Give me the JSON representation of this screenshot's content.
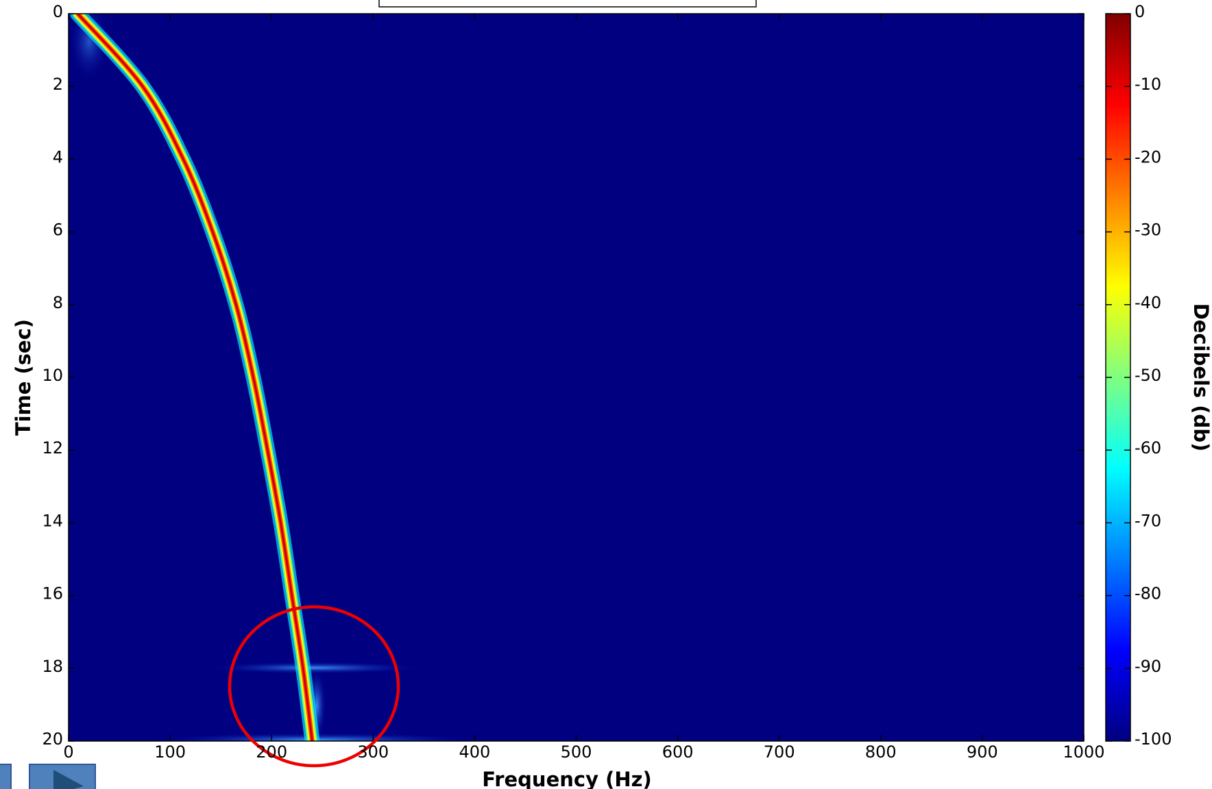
{
  "chart_data": {
    "type": "spectrogram",
    "xlabel": "Frequency (Hz)",
    "ylabel": "Time (sec)",
    "xlim": [
      0,
      1000
    ],
    "xticks": [
      0,
      100,
      200,
      300,
      400,
      500,
      600,
      700,
      800,
      900,
      1000
    ],
    "ylim": [
      0,
      20
    ],
    "y_inverted": true,
    "yticks": [
      0,
      2,
      4,
      6,
      8,
      10,
      12,
      14,
      16,
      18,
      20
    ],
    "colormap": "jet",
    "colorbar": {
      "label": "Decibels (db)",
      "lim": [
        -100,
        0
      ],
      "ticks": [
        0,
        -10,
        -20,
        -30,
        -40,
        -50,
        -60,
        -70,
        -80,
        -90,
        -100
      ]
    },
    "ridge": {
      "x": [
        9,
        73,
        113,
        142,
        165,
        182,
        196,
        209,
        220,
        231,
        240
      ],
      "y": [
        0,
        2,
        4,
        6,
        8,
        10,
        12,
        14,
        16,
        18,
        20
      ]
    }
  }
}
